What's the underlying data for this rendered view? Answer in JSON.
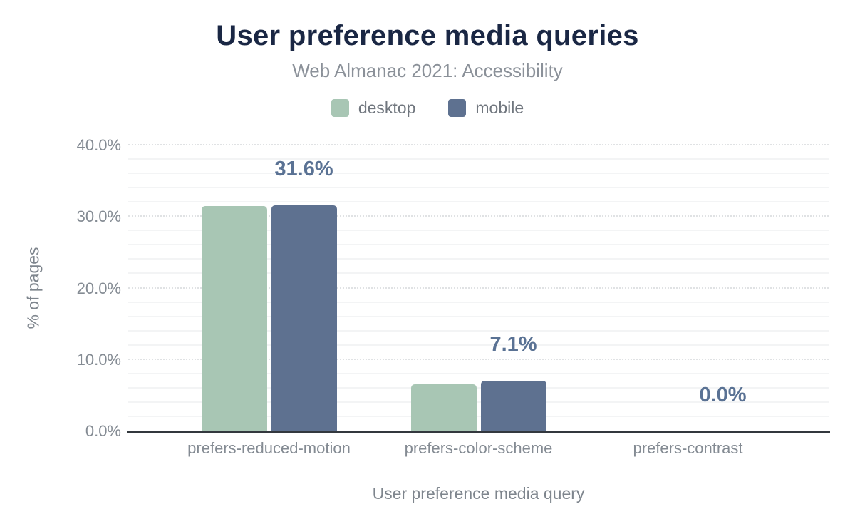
{
  "chart_data": {
    "type": "bar",
    "title": "User preference media queries",
    "subtitle": "Web Almanac 2021: Accessibility",
    "xlabel": "User preference media query",
    "ylabel": "% of pages",
    "categories": [
      "prefers-reduced-motion",
      "prefers-color-scheme",
      "prefers-contrast"
    ],
    "series": [
      {
        "name": "desktop",
        "color": "#a8c6b4",
        "values": [
          31.5,
          6.6,
          0.0
        ]
      },
      {
        "name": "mobile",
        "color": "#5e7190",
        "values": [
          31.6,
          7.1,
          0.0
        ]
      }
    ],
    "data_labels": {
      "annotated_series": "mobile",
      "values": [
        "31.6%",
        "7.1%",
        "0.0%"
      ]
    },
    "yticks": [
      "0.0%",
      "10.0%",
      "20.0%",
      "30.0%",
      "40.0%"
    ],
    "ylim": [
      0,
      40
    ],
    "grid": {
      "major_step": 10,
      "minor_step": 2,
      "major_style": "dotted",
      "minor_style": "solid"
    },
    "legend_position": "top"
  },
  "colors": {
    "background": "#ffffff",
    "title_text": "#1a2744",
    "subtitle_text": "#8b9199",
    "legend_text": "#70767e",
    "tick_text": "#848b93",
    "axis_title_text": "#7e858d",
    "data_label": "#5a7294",
    "axis_line": "#33383e",
    "grid_major": "#e0e2e4",
    "grid_minor": "#f3f4f5"
  }
}
